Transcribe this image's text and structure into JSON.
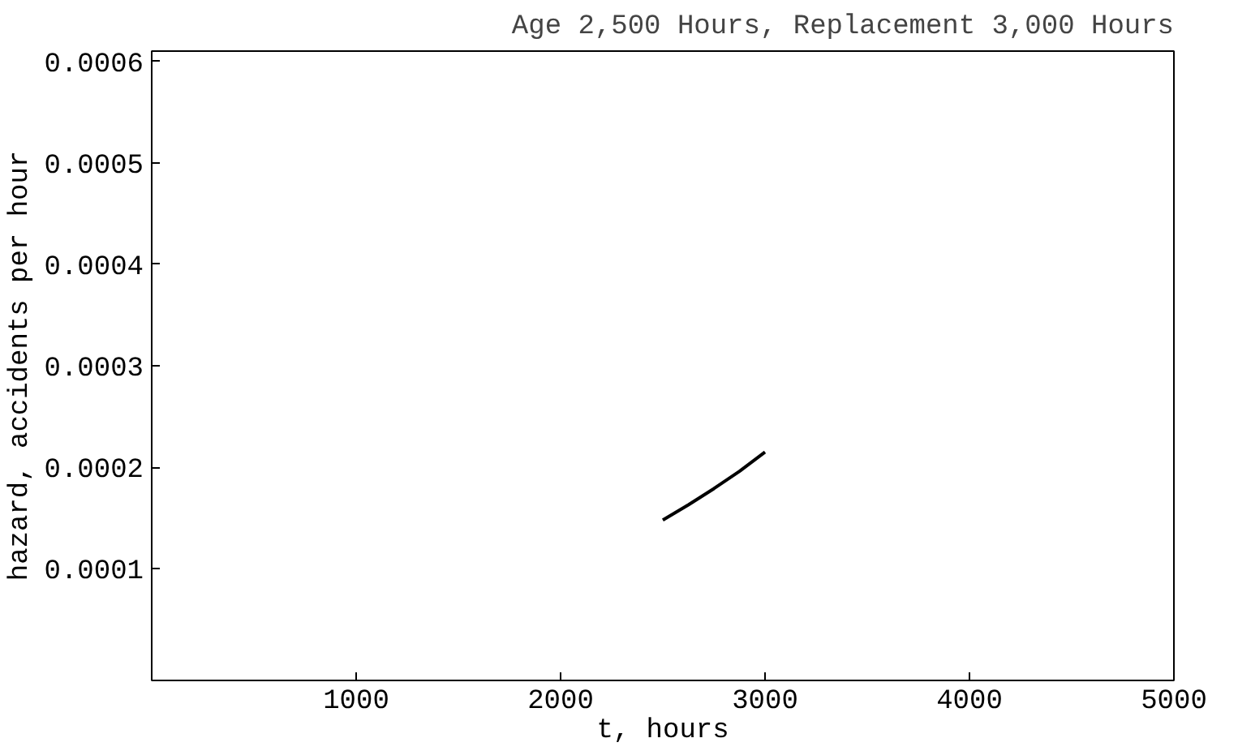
{
  "chart_data": {
    "type": "line",
    "title": "Age 2,500 Hours, Replacement 3,000 Hours",
    "xlabel": "t, hours",
    "ylabel": "hazard, accidents per hour",
    "x": [
      2500,
      2625,
      2750,
      2875,
      3000
    ],
    "series": [
      {
        "color": "#000000",
        "values": [
          0.000148,
          0.000163,
          0.000179,
          0.000196,
          0.000215
        ]
      }
    ],
    "xlim": [
      0,
      5000
    ],
    "xticks": [
      1000,
      2000,
      3000,
      4000,
      5000
    ],
    "ylim": [
      -1e-05,
      0.00061
    ],
    "yticks": [
      0.0001,
      0.0002,
      0.0003,
      0.0004,
      0.0005,
      0.0006
    ],
    "grid": false,
    "marker": "none",
    "line_style": "solid"
  }
}
